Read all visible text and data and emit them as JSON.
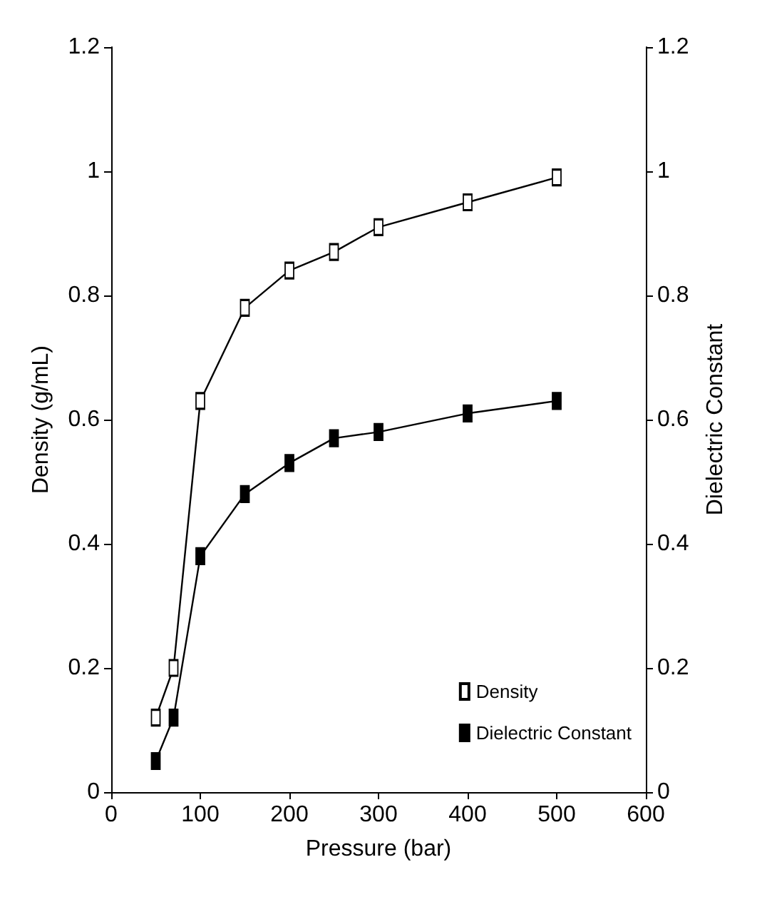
{
  "chart_data": {
    "type": "line",
    "xlabel": "Pressure (bar)",
    "ylabel": "Density (g/mL)",
    "y2label": "Dielectric Constant",
    "x": [
      50,
      70,
      100,
      150,
      200,
      250,
      300,
      400,
      500
    ],
    "series": [
      {
        "name": "Density",
        "color": "#000000",
        "values": [
          0.12,
          0.2,
          0.63,
          0.78,
          0.84,
          0.87,
          0.91,
          0.95,
          0.99
        ]
      },
      {
        "name": "Dielectric Constant",
        "color": "#000000",
        "axis": "y2",
        "values": [
          0.05,
          0.12,
          0.38,
          0.48,
          0.53,
          0.57,
          0.58,
          0.61,
          0.63
        ]
      }
    ],
    "xlim": [
      0,
      600
    ],
    "xticks": [
      0,
      100,
      200,
      300,
      400,
      500,
      600
    ],
    "ylim": [
      0,
      1.2
    ],
    "yticks": [
      0,
      0.2,
      0.4,
      0.6,
      0.8,
      1,
      1.2
    ],
    "y2lim": [
      0,
      1.2
    ],
    "y2ticks": [
      0,
      0.2,
      0.4,
      0.6,
      0.8,
      1,
      1.2
    ],
    "grid": false,
    "legend": "bottom right",
    "marker": "square",
    "line_style": "solid"
  }
}
